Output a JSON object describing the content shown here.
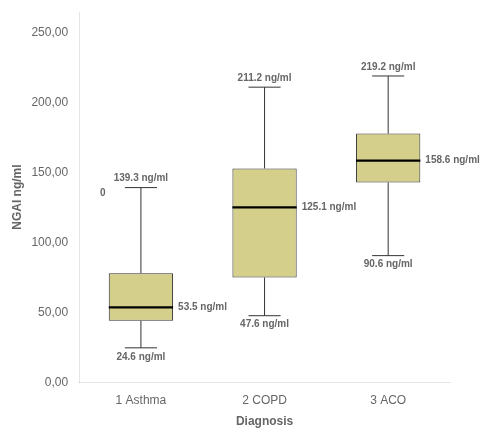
{
  "chart_data": {
    "type": "box",
    "xlabel": "Diagnosis",
    "ylabel": "NGAI ng/ml",
    "categories": [
      "1 Asthma",
      "2 COPD",
      "3 ACO"
    ],
    "boxes": [
      {
        "whislo": 24.6,
        "q1": 44.0,
        "med": 53.5,
        "q3": 78.0,
        "whishi": 139.3,
        "labels": {
          "whishi": "139.3 ng/ml",
          "med": "53.5 ng/ml",
          "whislo": "24.6 ng/ml"
        }
      },
      {
        "whislo": 47.6,
        "q1": 75.0,
        "med": 125.1,
        "q3": 153.0,
        "whishi": 211.2,
        "labels": {
          "whishi": "211.2 ng/ml",
          "med": "125.1 ng/ml",
          "whislo": "47.6 ng/ml"
        }
      },
      {
        "whislo": 90.6,
        "q1": 143.0,
        "med": 158.6,
        "q3": 178.0,
        "whishi": 219.2,
        "labels": {
          "whishi": "219.2 ng/ml",
          "med": "158.6 ng/ml",
          "whislo": "90.6 ng/ml"
        }
      }
    ],
    "annotations": [
      {
        "text": "0",
        "category": "1 Asthma",
        "y": 135
      }
    ],
    "ylim": [
      0,
      265
    ],
    "yticks": [
      {
        "value": 0,
        "label": "0,00"
      },
      {
        "value": 50,
        "label": "50,00"
      },
      {
        "value": 100,
        "label": "100,00"
      },
      {
        "value": 150,
        "label": "150,00"
      },
      {
        "value": 200,
        "label": "200,00"
      },
      {
        "value": 250,
        "label": "250,00"
      }
    ],
    "color": "#d4cf8a",
    "grid": false
  }
}
